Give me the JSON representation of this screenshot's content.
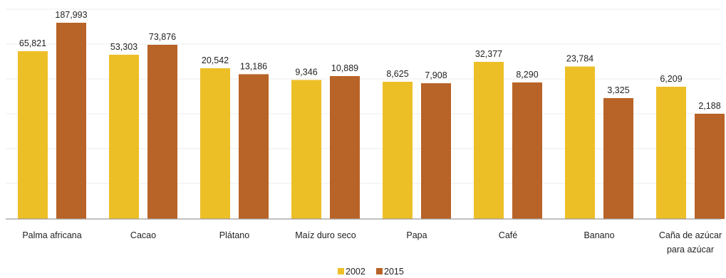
{
  "chart_data": {
    "type": "bar",
    "categories": [
      [
        "Palma africana"
      ],
      [
        "Cacao"
      ],
      [
        "Plátano"
      ],
      [
        "Maíz duro seco"
      ],
      [
        "Papa"
      ],
      [
        "Café"
      ],
      [
        "Banano"
      ],
      [
        "Caña de azúcar",
        "para azúcar"
      ]
    ],
    "series": [
      {
        "name": "2002",
        "color": "#EDBF27",
        "values": [
          65821,
          53303,
          20542,
          9346,
          8625,
          32377,
          23784,
          6209
        ],
        "labels": [
          "65,821",
          "53,303",
          "20,542",
          "9,346",
          "8,625",
          "32,377",
          "23,784",
          "6,209"
        ]
      },
      {
        "name": "2015",
        "color": "#B86327",
        "values": [
          187993,
          73876,
          13186,
          10889,
          7908,
          8290,
          3325,
          2188
        ],
        "labels": [
          "187,993",
          "73,876",
          "13,186",
          "10,889",
          "7,908",
          "8,290",
          "3,325",
          "2,188"
        ]
      }
    ],
    "title": "",
    "xlabel": "",
    "ylabel": "",
    "grid": true,
    "legend": "bottom-center",
    "baseline_color": "#9a9a9a",
    "grid_color": "#ececec"
  }
}
